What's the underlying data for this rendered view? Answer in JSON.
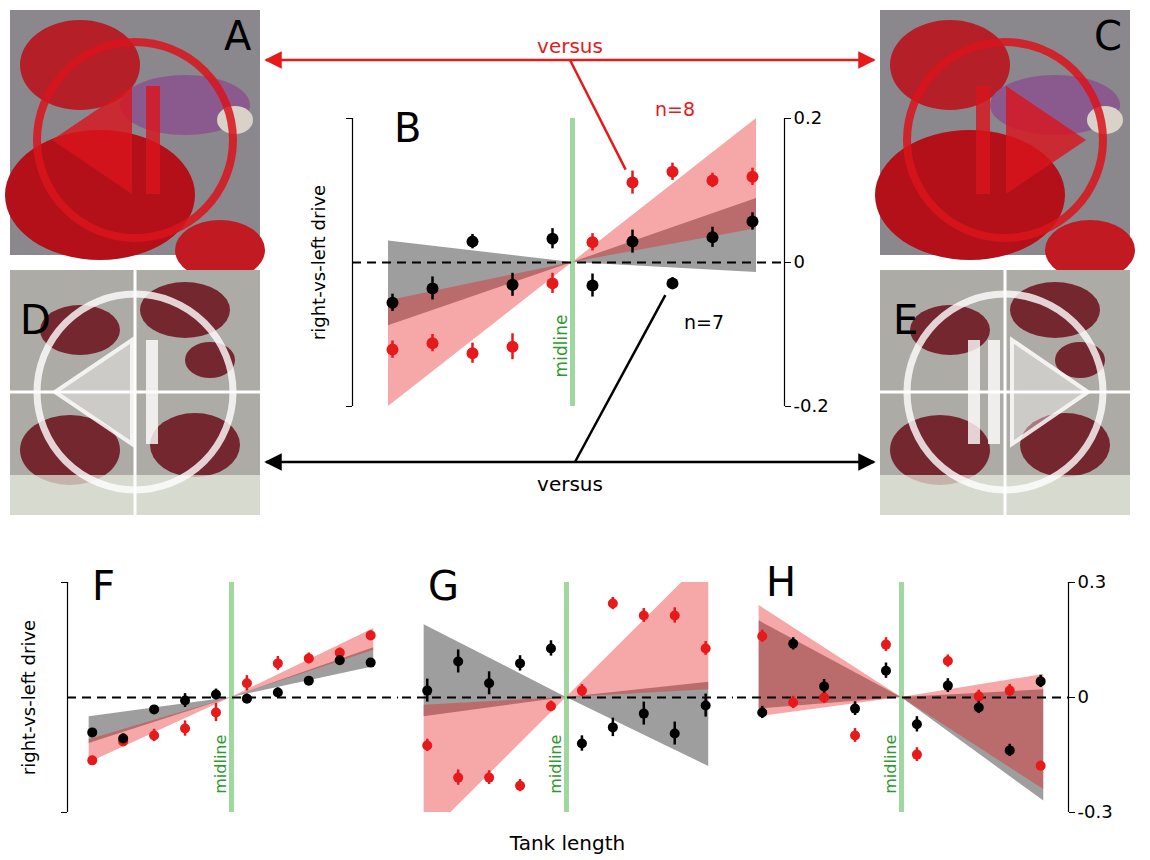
{
  "figure": {
    "images": [
      {
        "panel": "A"
      },
      {
        "panel": "C"
      },
      {
        "panel": "D"
      },
      {
        "panel": "E"
      }
    ],
    "versus": [
      {
        "text": "versus",
        "color": "#e8191a"
      },
      {
        "text": "versus",
        "color": "#000000"
      }
    ]
  },
  "chart_data": [
    {
      "panel": "B",
      "type": "scatter",
      "ylabel": "right-vs-left drive",
      "x": [
        1,
        2,
        3,
        4,
        5,
        6,
        7,
        8,
        9,
        10
      ],
      "xlim": [
        0,
        10.8
      ],
      "ylim": [
        -0.2,
        0.2
      ],
      "yticks": [
        -0.2,
        0,
        0.2
      ],
      "tick_labels": "y",
      "baseline": 0,
      "midline": {
        "x": 5.5,
        "label": "midline"
      },
      "series": [
        {
          "name": "n=8",
          "color": "#e8191a",
          "marker": "circle",
          "values": [
            -0.121,
            -0.112,
            -0.126,
            -0.117,
            -0.029,
            0.028,
            0.111,
            0.126,
            0.114,
            0.119
          ],
          "errors": [
            0.012,
            0.012,
            0.014,
            0.018,
            0.014,
            0.012,
            0.016,
            0.012,
            0.01,
            0.012
          ],
          "band": {
            "x": [
              0.9,
              5.5,
              10.1
            ],
            "lower": [
              -0.2,
              0,
              0.047
            ],
            "upper": [
              -0.053,
              0,
              0.2
            ]
          }
        },
        {
          "name": "n=7",
          "color": "#000000",
          "marker": "circle",
          "values": [
            -0.056,
            -0.036,
            0.029,
            -0.031,
            0.033,
            -0.032,
            0.029,
            -0.029,
            0.035,
            0.057
          ],
          "errors": [
            0.012,
            0.016,
            0.01,
            0.016,
            0.014,
            0.016,
            0.016,
            0.008,
            0.014,
            0.012
          ],
          "band": {
            "x": [
              0.9,
              5.5,
              10.1
            ],
            "lower": [
              -0.088,
              0,
              -0.014
            ],
            "upper": [
              0.03,
              0,
              0.089
            ]
          }
        }
      ]
    },
    {
      "panel": "F",
      "type": "scatter",
      "ylabel": "right-vs-left drive",
      "x": [
        1,
        2,
        3,
        4,
        5,
        6,
        7,
        8,
        9,
        10
      ],
      "xlim": [
        0.2,
        10.9
      ],
      "ylim": [
        -0.3,
        0.3
      ],
      "yticks": [
        -0.3,
        0,
        0.3
      ],
      "tick_labels": false,
      "baseline": 0,
      "midline": {
        "x": 5.5,
        "label": "midline"
      },
      "series": [
        {
          "color": "#e8191a",
          "marker": "circle",
          "values": [
            -0.164,
            -0.115,
            -0.099,
            -0.081,
            -0.039,
            0.037,
            0.089,
            0.102,
            0.117,
            0.162
          ],
          "errors": [
            0.01,
            0.012,
            0.016,
            0.02,
            0.024,
            0.02,
            0.018,
            0.014,
            0.012,
            0.012
          ],
          "band": {
            "x": [
              0.9,
              5.5,
              10.1
            ],
            "lower": [
              -0.17,
              0,
              0.123
            ],
            "upper": [
              -0.11,
              0,
              0.18
            ]
          }
        },
        {
          "color": "#000000",
          "marker": "circle",
          "values": [
            -0.091,
            -0.107,
            -0.031,
            -0.008,
            0.008,
            -0.003,
            0.013,
            0.044,
            0.097,
            0.091
          ],
          "errors": [
            0.01,
            0.012,
            0.01,
            0.018,
            0.014,
            0.012,
            0.012,
            0.01,
            0.012,
            0.01
          ],
          "band": {
            "x": [
              0.9,
              5.5,
              10.1
            ],
            "lower": [
              -0.12,
              0,
              0.08
            ],
            "upper": [
              -0.05,
              0,
              0.13
            ]
          }
        }
      ]
    },
    {
      "panel": "G",
      "type": "scatter",
      "xlabel": "Tank length",
      "x": [
        1,
        2,
        3,
        4,
        5,
        6,
        7,
        8,
        9,
        10
      ],
      "xlim": [
        0.2,
        10.9
      ],
      "ylim": [
        -0.3,
        0.3
      ],
      "yticks": [
        -0.3,
        0,
        0.3
      ],
      "tick_labels": false,
      "baseline": 0,
      "midline": {
        "x": 5.5,
        "label": "midline"
      },
      "series": [
        {
          "color": "#e8191a",
          "marker": "circle",
          "values": [
            -0.125,
            -0.209,
            -0.209,
            -0.23,
            -0.023,
            0.018,
            0.245,
            0.214,
            0.214,
            0.128
          ],
          "errors": [
            0.016,
            0.02,
            0.018,
            0.016,
            0.014,
            0.016,
            0.016,
            0.018,
            0.02,
            0.018
          ],
          "band": {
            "x": [
              0.9,
              5.5,
              10.1
            ],
            "lower": [
              -0.37,
              0,
              0.02
            ],
            "upper": [
              -0.02,
              0,
              0.37
            ]
          }
        },
        {
          "color": "#000000",
          "marker": "circle",
          "values": [
            0.018,
            0.094,
            0.037,
            0.089,
            0.128,
            -0.12,
            -0.078,
            -0.042,
            -0.094,
            -0.021
          ],
          "errors": [
            0.03,
            0.03,
            0.03,
            0.02,
            0.02,
            0.02,
            0.024,
            0.03,
            0.03,
            0.03
          ],
          "band": {
            "x": [
              0.9,
              5.5,
              10.1
            ],
            "lower": [
              -0.05,
              0,
              -0.18
            ],
            "upper": [
              0.19,
              0,
              0.04
            ]
          }
        }
      ]
    },
    {
      "panel": "H",
      "type": "scatter",
      "x": [
        1,
        2,
        3,
        4,
        5,
        6,
        7,
        8,
        9,
        10
      ],
      "xlim": [
        0.2,
        10.9
      ],
      "ylim": [
        -0.3,
        0.3
      ],
      "yticks": [
        -0.3,
        0,
        0.3
      ],
      "tick_labels": "y",
      "baseline": 0,
      "midline": {
        "x": 5.5,
        "label": "midline"
      },
      "series": [
        {
          "color": "#e8191a",
          "marker": "circle",
          "values": [
            0.16,
            -0.013,
            0,
            -0.099,
            0.138,
            -0.149,
            0.095,
            0.003,
            0.018,
            -0.178
          ],
          "errors": [
            0.016,
            0.016,
            0.016,
            0.018,
            0.018,
            0.018,
            0.016,
            0.016,
            0.016,
            0.012
          ],
          "band": {
            "x": [
              0.9,
              5.5,
              10.1
            ],
            "lower": [
              -0.05,
              0,
              -0.24
            ],
            "upper": [
              0.24,
              0,
              0.06
            ]
          }
        },
        {
          "color": "#000000",
          "marker": "circle",
          "values": [
            -0.039,
            0.14,
            0.029,
            -0.029,
            0.07,
            -0.07,
            0.031,
            -0.026,
            -0.138,
            0.042
          ],
          "errors": [
            0.016,
            0.016,
            0.018,
            0.018,
            0.02,
            0.02,
            0.018,
            0.016,
            0.016,
            0.016
          ],
          "band": {
            "x": [
              0.9,
              5.5,
              10.1
            ],
            "lower": [
              -0.03,
              0,
              -0.27
            ],
            "upper": [
              0.2,
              0,
              0.02
            ]
          }
        }
      ]
    }
  ]
}
